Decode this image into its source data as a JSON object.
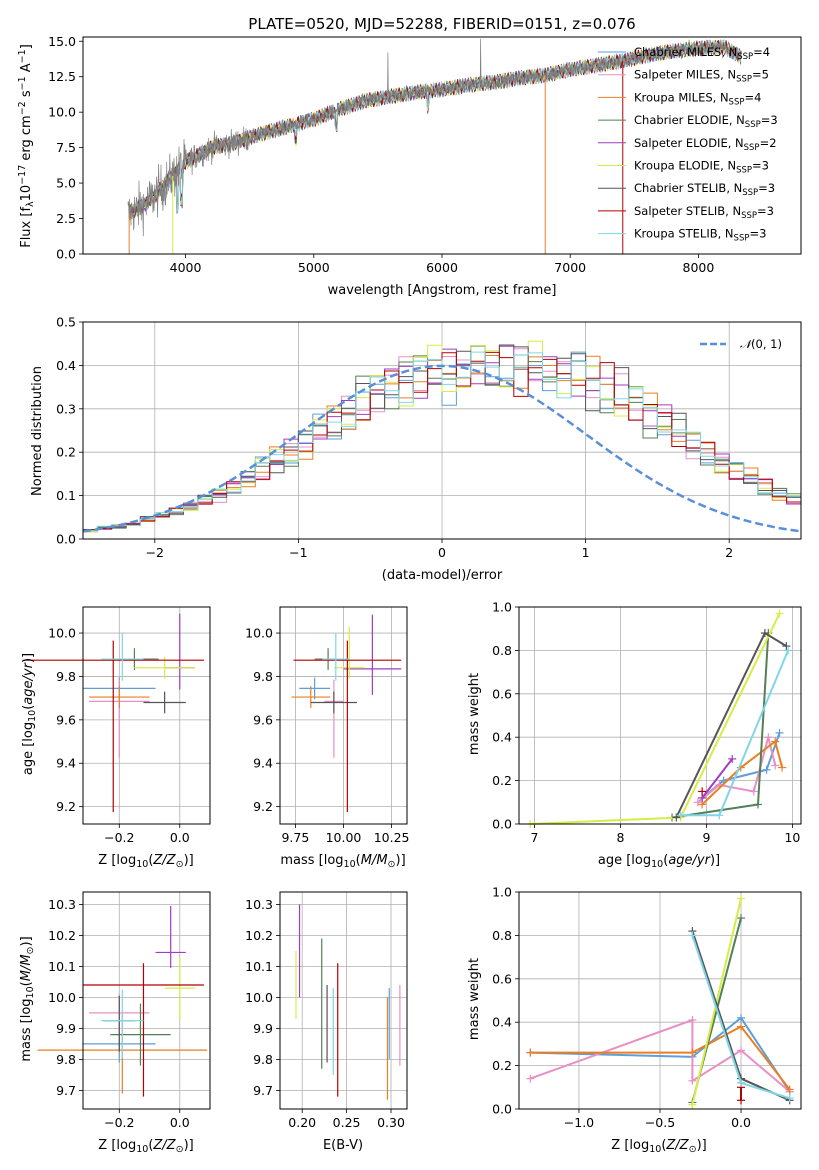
{
  "figure": {
    "title": "PLATE=0520, MJD=52288, FIBERID=0151, z=0.076"
  },
  "colors": {
    "chabrier_miles": "#5f9ed9",
    "salpeter_miles": "#e88fc6",
    "kroupa_miles": "#e87f22",
    "chabrier_elodie": "#547f57",
    "salpeter_elodie": "#a23cc1",
    "kroupa_elodie": "#d7ec46",
    "chabrier_stelib": "#555555",
    "salpeter_stelib": "#b30000",
    "kroupa_stelib": "#7fd6e6",
    "data": "#808080",
    "normal": "#5a8fd8"
  },
  "chart_data": [
    {
      "type": "line",
      "title": "PLATE=0520, MJD=52288, FIBERID=0151, z=0.076",
      "xlabel": "wavelength [Angstrom, rest frame]",
      "ylabel": "Flux [fλ10⁻¹⁷ erg cm⁻² s⁻¹ A⁻¹]",
      "xlim": [
        3200,
        8800
      ],
      "ylim": [
        0,
        15.3
      ],
      "xticks": [
        4000,
        5000,
        6000,
        7000,
        8000
      ],
      "yticks": [
        0.0,
        2.5,
        5.0,
        7.5,
        10.0,
        12.5,
        15.0
      ],
      "grid": false,
      "legend_position": "top-right",
      "data_series": {
        "name": "",
        "x": [
          3550,
          3700,
          3850,
          4000,
          4200,
          4400,
          4600,
          4800,
          5000,
          5200,
          5400,
          5600,
          5800,
          6000,
          6200,
          6400,
          6600,
          6800,
          7000,
          7200,
          7400,
          7600,
          7800,
          8000,
          8200,
          8350
        ],
        "y": [
          2.8,
          3.6,
          5.0,
          6.5,
          7.5,
          7.9,
          8.5,
          9.0,
          9.5,
          10.2,
          10.8,
          11.1,
          11.4,
          11.6,
          11.9,
          12.1,
          12.4,
          12.6,
          13.0,
          13.3,
          13.6,
          14.0,
          14.3,
          14.5,
          14.6,
          13.8
        ]
      },
      "series": [
        {
          "name": "Chabrier MILES, N_SSP=4",
          "color_key": "chabrier_miles"
        },
        {
          "name": "Salpeter MILES, N_SSP=5",
          "color_key": "salpeter_miles"
        },
        {
          "name": "Kroupa MILES, N_SSP=4",
          "color_key": "kroupa_miles"
        },
        {
          "name": "Chabrier ELODIE, N_SSP=3",
          "color_key": "chabrier_elodie"
        },
        {
          "name": "Salpeter ELODIE, N_SSP=2",
          "color_key": "salpeter_elodie"
        },
        {
          "name": "Kroupa ELODIE, N_SSP=3",
          "color_key": "kroupa_elodie"
        },
        {
          "name": "Chabrier STELIB, N_SSP=3",
          "color_key": "chabrier_stelib"
        },
        {
          "name": "Salpeter STELIB, N_SSP=3",
          "color_key": "salpeter_stelib"
        },
        {
          "name": "Kroupa STELIB, N_SSP=3",
          "color_key": "kroupa_stelib"
        }
      ],
      "legend_parts": [
        {
          "main": "Chabrier MILES, N",
          "sub": "SSP",
          "tail": "=4"
        },
        {
          "main": "Salpeter MILES, N",
          "sub": "SSP",
          "tail": "=5"
        },
        {
          "main": "Kroupa MILES, N",
          "sub": "SSP",
          "tail": "=4"
        },
        {
          "main": "Chabrier ELODIE, N",
          "sub": "SSP",
          "tail": "=3"
        },
        {
          "main": "Salpeter ELODIE, N",
          "sub": "SSP",
          "tail": "=2"
        },
        {
          "main": "Kroupa ELODIE, N",
          "sub": "SSP",
          "tail": "=3"
        },
        {
          "main": "Chabrier STELIB, N",
          "sub": "SSP",
          "tail": "=3"
        },
        {
          "main": "Salpeter STELIB, N",
          "sub": "SSP",
          "tail": "=3"
        },
        {
          "main": "Kroupa STELIB, N",
          "sub": "SSP",
          "tail": "=3"
        }
      ],
      "ylabel_parts": {
        "a": "Flux [f",
        "b": "λ",
        "c": "10",
        "d": "−17",
        "e": " erg cm",
        "f": "−2",
        "g": " s",
        "h": "−1",
        "i": " A",
        "j": "−1",
        "k": "]"
      }
    },
    {
      "type": "bar",
      "xlabel": "(data-model)/error",
      "ylabel": "Normed distribution",
      "xlim": [
        -2.5,
        2.5
      ],
      "ylim": [
        0,
        0.5
      ],
      "xticks": [
        -2,
        -1,
        0,
        1,
        2
      ],
      "yticks": [
        0.0,
        0.1,
        0.2,
        0.3,
        0.4,
        0.5
      ],
      "grid": true,
      "legend_position": "top-right",
      "legend": "N(0, 1)",
      "bin_edges_start": -2.5,
      "bin_width": 0.1,
      "histogram_reference": [
        0.02,
        0.025,
        0.03,
        0.035,
        0.045,
        0.055,
        0.065,
        0.075,
        0.09,
        0.105,
        0.12,
        0.14,
        0.16,
        0.18,
        0.2,
        0.22,
        0.245,
        0.27,
        0.295,
        0.315,
        0.335,
        0.35,
        0.365,
        0.375,
        0.385,
        0.39,
        0.395,
        0.398,
        0.399,
        0.398,
        0.398,
        0.395,
        0.39,
        0.38,
        0.37,
        0.36,
        0.345,
        0.33,
        0.31,
        0.29,
        0.27,
        0.25,
        0.225,
        0.2,
        0.18,
        0.16,
        0.14,
        0.12,
        0.105,
        0.09,
        0.075
      ]
    },
    {
      "type": "scatter",
      "xlabel": "Z [log10(Z/Z⊙)]",
      "ylabel": "age  [log10(age/yr)]",
      "xlim": [
        -0.32,
        0.1
      ],
      "ylim": [
        9.12,
        10.12
      ],
      "xticks": [
        -0.2,
        0.0
      ],
      "yticks": [
        9.2,
        9.4,
        9.6,
        9.8,
        10.0
      ],
      "points": [
        {
          "color_key": "chabrier_miles",
          "x": -0.2,
          "y": 9.745,
          "xerr": 0.12,
          "yerr_lo": 0.05,
          "yerr_hi": 0.05
        },
        {
          "color_key": "salpeter_miles",
          "x": -0.2,
          "y": 9.685,
          "xerr": 0.1,
          "yerr_lo": 0.26,
          "yerr_hi": 0.1
        },
        {
          "color_key": "kroupa_miles",
          "x": -0.2,
          "y": 9.705,
          "xerr": 0.1,
          "yerr_lo": 0.05,
          "yerr_hi": 0.05
        },
        {
          "color_key": "chabrier_elodie",
          "x": -0.15,
          "y": 9.88,
          "xerr": 0.08,
          "yerr_lo": 0.05,
          "yerr_hi": 0.05
        },
        {
          "color_key": "salpeter_elodie",
          "x": 0.0,
          "y": 9.84,
          "xerr": 0.05,
          "yerr_lo": 0.1,
          "yerr_hi": 0.25
        },
        {
          "color_key": "kroupa_elodie",
          "x": -0.05,
          "y": 9.84,
          "xerr": 0.1,
          "yerr_lo": 0.05,
          "yerr_hi": 0.05
        },
        {
          "color_key": "chabrier_stelib",
          "x": -0.05,
          "y": 9.68,
          "xerr": 0.07,
          "yerr_lo": 0.05,
          "yerr_hi": 0.05
        },
        {
          "color_key": "salpeter_stelib",
          "x": -0.22,
          "y": 9.875,
          "xerr": 0.3,
          "yerr_lo": 0.7,
          "yerr_hi": 0.09
        },
        {
          "color_key": "kroupa_stelib",
          "x": -0.19,
          "y": 9.88,
          "xerr": 0.07,
          "yerr_lo": 0.1,
          "yerr_hi": 0.12
        }
      ]
    },
    {
      "type": "scatter",
      "xlabel": "mass [log10(M/M⊙)]",
      "ylabel": "",
      "xlim": [
        9.67,
        10.33
      ],
      "ylim": [
        9.12,
        10.12
      ],
      "xticks": [
        9.75,
        10.0,
        10.25
      ],
      "yticks": [
        9.2,
        9.4,
        9.6,
        9.8,
        10.0
      ],
      "points": [
        {
          "color_key": "chabrier_miles",
          "x": 9.85,
          "y": 9.745,
          "xerr": 0.08,
          "yerr_lo": 0.05,
          "yerr_hi": 0.05
        },
        {
          "color_key": "salpeter_miles",
          "x": 9.95,
          "y": 9.685,
          "xerr": 0.05,
          "yerr_lo": 0.26,
          "yerr_hi": 0.1
        },
        {
          "color_key": "kroupa_miles",
          "x": 9.83,
          "y": 9.705,
          "xerr": 0.1,
          "yerr_lo": 0.05,
          "yerr_hi": 0.05
        },
        {
          "color_key": "chabrier_elodie",
          "x": 9.92,
          "y": 9.88,
          "xerr": 0.07,
          "yerr_lo": 0.05,
          "yerr_hi": 0.05
        },
        {
          "color_key": "salpeter_elodie",
          "x": 10.15,
          "y": 9.835,
          "xerr": 0.15,
          "yerr_lo": 0.12,
          "yerr_hi": 0.25
        },
        {
          "color_key": "kroupa_elodie",
          "x": 10.03,
          "y": 9.84,
          "xerr": 0.08,
          "yerr_lo": 0.05,
          "yerr_hi": 0.19
        },
        {
          "color_key": "chabrier_stelib",
          "x": 9.95,
          "y": 9.68,
          "xerr": 0.12,
          "yerr_lo": 0.05,
          "yerr_hi": 0.05
        },
        {
          "color_key": "salpeter_stelib",
          "x": 10.02,
          "y": 9.875,
          "xerr": 0.28,
          "yerr_lo": 0.7,
          "yerr_hi": 0.09
        },
        {
          "color_key": "kroupa_stelib",
          "x": 9.96,
          "y": 9.88,
          "xerr": 0.07,
          "yerr_lo": 0.1,
          "yerr_hi": 0.12
        }
      ]
    },
    {
      "type": "line",
      "xlabel": "age  [log10(age/yr)]",
      "ylabel": "mass weight",
      "xlim": [
        6.82,
        10.1
      ],
      "ylim": [
        0,
        1.0
      ],
      "xticks": [
        7,
        8,
        9,
        10
      ],
      "yticks": [
        0.0,
        0.2,
        0.4,
        0.6,
        0.8,
        1.0
      ],
      "grid": true,
      "series": [
        {
          "color_key": "chabrier_miles",
          "x": [
            8.95,
            9.2,
            9.7,
            9.85
          ],
          "y": [
            0.12,
            0.2,
            0.25,
            0.42
          ]
        },
        {
          "color_key": "salpeter_miles",
          "x": [
            8.9,
            9.15,
            9.55,
            9.72,
            9.8
          ],
          "y": [
            0.1,
            0.18,
            0.15,
            0.4,
            0.27
          ]
        },
        {
          "color_key": "kroupa_miles",
          "x": [
            8.95,
            9.4,
            9.8,
            9.88
          ],
          "y": [
            0.09,
            0.26,
            0.38,
            0.26
          ]
        },
        {
          "color_key": "chabrier_elodie",
          "x": [
            8.6,
            9.6,
            9.72
          ],
          "y": [
            0.03,
            0.09,
            0.88
          ]
        },
        {
          "color_key": "salpeter_elodie",
          "x": [
            8.95,
            9.3
          ],
          "y": [
            0.12,
            0.3
          ]
        },
        {
          "color_key": "kroupa_elodie",
          "x": [
            6.95,
            8.7,
            9.85
          ],
          "y": [
            0.0,
            0.03,
            0.97
          ]
        },
        {
          "color_key": "chabrier_stelib",
          "x": [
            8.65,
            9.68,
            9.93
          ],
          "y": [
            0.03,
            0.88,
            0.82
          ]
        },
        {
          "color_key": "salpeter_stelib",
          "x": [
            8.95
          ],
          "y": [
            0.15
          ]
        },
        {
          "color_key": "kroupa_stelib",
          "x": [
            8.7,
            9.15,
            9.95
          ],
          "y": [
            0.04,
            0.04,
            0.8
          ]
        }
      ]
    },
    {
      "type": "scatter",
      "xlabel": "Z [log10(Z/Z⊙)]",
      "ylabel": "mass [log10(M/M⊙)]",
      "xlim": [
        -0.32,
        0.1
      ],
      "ylim": [
        9.64,
        10.34
      ],
      "xticks": [
        -0.2,
        0.0
      ],
      "yticks": [
        9.7,
        9.8,
        9.9,
        10.0,
        10.1,
        10.2,
        10.3
      ],
      "points": [
        {
          "color_key": "chabrier_miles",
          "x": -0.2,
          "y": 9.85,
          "xerr": 0.12,
          "yerr_lo": 0.06,
          "yerr_hi": 0.06
        },
        {
          "color_key": "salpeter_miles",
          "x": -0.2,
          "y": 9.95,
          "xerr": 0.1,
          "yerr_lo": 0.08,
          "yerr_hi": 0.06
        },
        {
          "color_key": "kroupa_miles",
          "x": -0.19,
          "y": 9.83,
          "xerr": 0.28,
          "yerr_lo": 0.14,
          "yerr_hi": 0.12
        },
        {
          "color_key": "chabrier_elodie",
          "x": -0.13,
          "y": 9.88,
          "xerr": 0.1,
          "yerr_lo": 0.1,
          "yerr_hi": 0.1
        },
        {
          "color_key": "salpeter_elodie",
          "x": -0.03,
          "y": 10.145,
          "xerr": 0.05,
          "yerr_lo": 0.05,
          "yerr_hi": 0.15
        },
        {
          "color_key": "kroupa_elodie",
          "x": 0.0,
          "y": 10.03,
          "xerr": 0.05,
          "yerr_lo": 0.1,
          "yerr_hi": 0.1
        },
        {
          "color_key": "chabrier_stelib",
          "x": -0.2,
          "y": 9.925,
          "xerr": 0.05,
          "yerr_lo": 0.1,
          "yerr_hi": 0.08
        },
        {
          "color_key": "salpeter_stelib",
          "x": -0.12,
          "y": 10.04,
          "xerr": 0.2,
          "yerr_lo": 0.36,
          "yerr_hi": 0.07
        },
        {
          "color_key": "kroupa_stelib",
          "x": -0.19,
          "y": 9.925,
          "xerr": 0.07,
          "yerr_lo": 0.12,
          "yerr_hi": 0.1
        }
      ]
    },
    {
      "type": "scatter",
      "xlabel": "E(B-V)",
      "ylabel": "",
      "xlim": [
        0.175,
        0.318
      ],
      "ylim": [
        9.64,
        10.34
      ],
      "xticks": [
        0.2,
        0.25,
        0.3
      ],
      "yticks": [
        9.7,
        9.8,
        9.9,
        10.0,
        10.1,
        10.2,
        10.3
      ],
      "points": [
        {
          "color_key": "chabrier_miles",
          "x": 0.298,
          "y": 9.9,
          "xerr": 0,
          "yerr_lo": 0.1,
          "yerr_hi": 0.13
        },
        {
          "color_key": "salpeter_miles",
          "x": 0.31,
          "y": 9.9,
          "xerr": 0,
          "yerr_lo": 0.12,
          "yerr_hi": 0.14
        },
        {
          "color_key": "kroupa_miles",
          "x": 0.296,
          "y": 9.85,
          "xerr": 0,
          "yerr_lo": 0.18,
          "yerr_hi": 0.15
        },
        {
          "color_key": "chabrier_elodie",
          "x": 0.222,
          "y": 9.98,
          "xerr": 0,
          "yerr_lo": 0.21,
          "yerr_hi": 0.21
        },
        {
          "color_key": "salpeter_elodie",
          "x": 0.197,
          "y": 10.15,
          "xerr": 0,
          "yerr_lo": 0.15,
          "yerr_hi": 0.15
        },
        {
          "color_key": "kroupa_elodie",
          "x": 0.193,
          "y": 10.03,
          "xerr": 0,
          "yerr_lo": 0.1,
          "yerr_hi": 0.12
        },
        {
          "color_key": "chabrier_stelib",
          "x": 0.228,
          "y": 9.91,
          "xerr": 0,
          "yerr_lo": 0.12,
          "yerr_hi": 0.13
        },
        {
          "color_key": "salpeter_stelib",
          "x": 0.24,
          "y": 9.9,
          "xerr": 0,
          "yerr_lo": 0.22,
          "yerr_hi": 0.21
        },
        {
          "color_key": "kroupa_stelib",
          "x": 0.235,
          "y": 9.9,
          "xerr": 0,
          "yerr_lo": 0.15,
          "yerr_hi": 0.13
        }
      ]
    },
    {
      "type": "line",
      "xlabel": "Z [log10(Z/Z⊙)]",
      "ylabel": "mass weight",
      "xlim": [
        -1.37,
        0.37
      ],
      "ylim": [
        0,
        1.0
      ],
      "xticks": [
        -1.0,
        -0.5,
        0.0
      ],
      "yticks": [
        0.0,
        0.2,
        0.4,
        0.6,
        0.8,
        1.0
      ],
      "grid": true,
      "series": [
        {
          "color_key": "chabrier_miles",
          "x": [
            -1.3,
            -0.3,
            0.0,
            0.3
          ],
          "y": [
            0.26,
            0.24,
            0.42,
            0.08
          ]
        },
        {
          "color_key": "salpeter_miles",
          "x": [
            -1.3,
            -0.3,
            -0.3,
            0.0,
            0.3
          ],
          "y": [
            0.14,
            0.41,
            0.13,
            0.27,
            0.08
          ]
        },
        {
          "color_key": "kroupa_miles",
          "x": [
            -1.3,
            -0.3,
            0.0,
            0.3
          ],
          "y": [
            0.26,
            0.26,
            0.38,
            0.09
          ]
        },
        {
          "color_key": "chabrier_elodie",
          "x": [
            -0.3,
            0.0
          ],
          "y": [
            0.03,
            0.88
          ]
        },
        {
          "color_key": "salpeter_elodie",
          "x": [
            0.0
          ],
          "y": [
            0.12
          ]
        },
        {
          "color_key": "kroupa_elodie",
          "x": [
            -0.3,
            0.0
          ],
          "y": [
            0.02,
            0.97
          ]
        },
        {
          "color_key": "chabrier_stelib",
          "x": [
            -0.3,
            0.0,
            0.3
          ],
          "y": [
            0.82,
            0.14,
            0.04
          ]
        },
        {
          "color_key": "salpeter_stelib",
          "x": [
            0.0,
            0.0
          ],
          "y": [
            0.04,
            0.1
          ]
        },
        {
          "color_key": "kroupa_stelib",
          "x": [
            -0.3,
            0.0,
            0.3
          ],
          "y": [
            0.8,
            0.12,
            0.05
          ]
        }
      ]
    }
  ],
  "labels": {
    "z_label": {
      "a": "Z [log",
      "b": "10",
      "c": "(",
      "d": "Z/Z",
      "e": "⊙",
      "f": ")]"
    },
    "age_label": {
      "a": "age  [log",
      "b": "10",
      "c": "(",
      "d": "age/yr",
      "e": ")]"
    },
    "mass_label": {
      "a": "mass [log",
      "b": "10",
      "c": "(",
      "d": "M/M",
      "e": "⊙",
      "f": ")]"
    },
    "ebv_label": "E(B-V)",
    "mass_weight_label": "mass weight",
    "legend_normal": {
      "a": "𝒩",
      "b": "(0, 1)"
    }
  }
}
